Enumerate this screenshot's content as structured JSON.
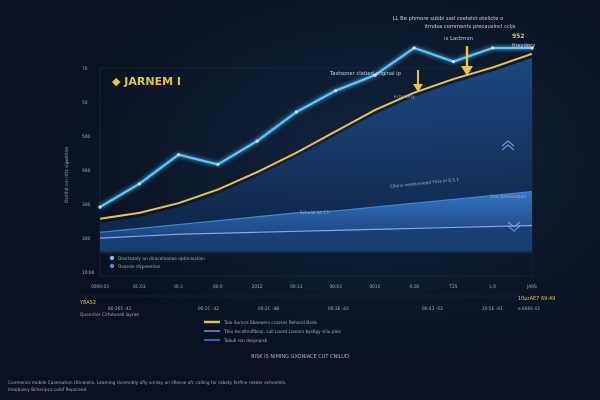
{
  "brand": {
    "name": "JARNEM I"
  },
  "header_notes": {
    "line1": "LL Be phmore subbi sad coetelct otelicte o",
    "line2": "itmdsa comments precausincl ccljs",
    "value": "952",
    "tag": "theydery"
  },
  "annotations": {
    "peak_label": "ix Lactrnon",
    "mid_label": "Tastsoner clatied criginal ip",
    "mid_sub": "in bsivery",
    "area_label": "Cllaris nendonneed Ficis in 8.S.1",
    "band_label": "Scholal ist 13",
    "right_label": "Cesi becomation"
  },
  "legend_inner": [
    {
      "label": "Dosrtsanly an diracelnanae optimisation",
      "color": "#6fbfff"
    },
    {
      "label": "Ovarole dirpeemion",
      "color": "#4a8fe0"
    }
  ],
  "y_ticks": [
    "70",
    "50",
    "500",
    "900",
    "300",
    "300",
    "10:00"
  ],
  "y_axis_label": "Osrithit crn ritts sigwithiss",
  "x_ticks": [
    "0000:03",
    "0C:03",
    "t0:3",
    "00:0",
    "2012",
    "00:13",
    "00:03",
    "0010",
    "0:28",
    "T25",
    "L:X",
    "JARS"
  ],
  "table": {
    "left_head": "Y8A52",
    "left_sub": "Quenriter Cirtotonell layroe",
    "right_head": "10µrAE7 69:49",
    "right_sub": "e.6066 43",
    "cols": [
      "80:265 -41",
      "00:2C -42",
      "00:2C -48",
      "00:3E -43",
      "00:43 -43",
      "20:5E -41"
    ]
  },
  "legend_bottom": [
    {
      "label": "Tolo Sornce Sbanoers crosses Rehand Bods",
      "color": "#e7c34a"
    },
    {
      "label": "Thiu he:olhnifibsoi, cull Lnord Lianors bysllgy siliu ples",
      "color": "#7f9bd8"
    },
    {
      "label": "Tobull ron derpepisk",
      "color": "#4a8fe0"
    }
  ],
  "footer_title": "BISK IS NIMING GXONIACE CUT CNILUD",
  "footer_notes": [
    "Conmencs mobile Caselsation Utineiolio, Leaming Ucemnbly ofly vnnlay on lifiecse ofc calling for roboty forfine reeder echonlets.",
    "lmarbiiery Bcheripca colof Reporend."
  ],
  "chart_data": {
    "type": "area",
    "x": [
      "0000:03",
      "0C:03",
      "t0:3",
      "00:0",
      "2012",
      "00:13",
      "00:03",
      "0010",
      "0:28",
      "T25",
      "L:X",
      "JARS"
    ],
    "series": [
      {
        "name": "Dosrtsanly an diracelnanae optimisation",
        "color": "#58c8ff",
        "values": [
          0.18,
          0.3,
          0.45,
          0.4,
          0.52,
          0.67,
          0.78,
          0.86,
          1.0,
          0.93,
          1.0,
          1.0
        ]
      },
      {
        "name": "Tolo Sornce Sbanoers crosses Rehand Bods",
        "color": "#e7c34a",
        "values": [
          0.12,
          0.15,
          0.2,
          0.27,
          0.36,
          0.46,
          0.57,
          0.68,
          0.77,
          0.84,
          0.9,
          0.97
        ]
      },
      {
        "name": "Ovarole dirpeemion",
        "color": "#3f86d8",
        "values": [
          0.05,
          0.07,
          0.09,
          0.11,
          0.13,
          0.15,
          0.16,
          0.18,
          0.2,
          0.22,
          0.24,
          0.26
        ]
      },
      {
        "name": "Thiu he:olhnifibsoi, cull Lnord Lianors bysllgy siliu ples",
        "color": "#8aa6e0",
        "values": [
          0.02,
          0.03,
          0.04,
          0.045,
          0.05,
          0.055,
          0.06,
          0.065,
          0.07,
          0.075,
          0.08,
          0.085
        ]
      }
    ]
  }
}
